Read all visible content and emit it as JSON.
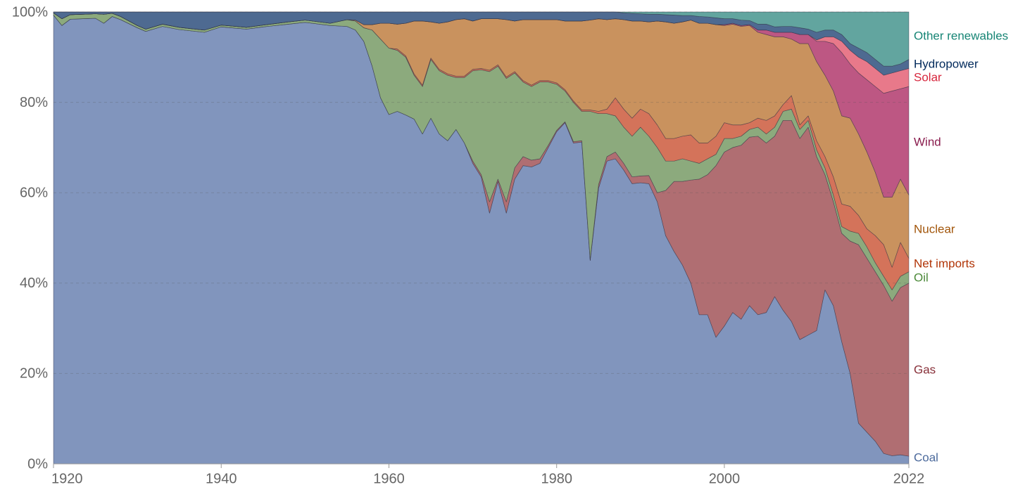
{
  "chart_data": {
    "type": "stacked_area",
    "x": [
      1920,
      1921,
      1922,
      1925,
      1926,
      1927,
      1928,
      1930,
      1931,
      1933,
      1935,
      1938,
      1940,
      1943,
      1945,
      1948,
      1950,
      1953,
      1955,
      1956,
      1957,
      1958,
      1959,
      1960,
      1961,
      1962,
      1963,
      1964,
      1965,
      1966,
      1967,
      1968,
      1969,
      1970,
      1971,
      1972,
      1973,
      1974,
      1975,
      1976,
      1977,
      1978,
      1979,
      1980,
      1981,
      1982,
      1983,
      1984,
      1985,
      1986,
      1987,
      1988,
      1989,
      1990,
      1991,
      1992,
      1993,
      1994,
      1995,
      1996,
      1997,
      1998,
      1999,
      2000,
      2001,
      2002,
      2003,
      2004,
      2005,
      2006,
      2007,
      2008,
      2009,
      2010,
      2011,
      2012,
      2013,
      2014,
      2015,
      2016,
      2017,
      2018,
      2019,
      2020,
      2021,
      2022
    ],
    "xlim": [
      1920,
      2022
    ],
    "xticks": [
      1920,
      1940,
      1960,
      1980,
      2000,
      2022
    ],
    "ylim": [
      0,
      100
    ],
    "yticks": [
      {
        "value": 0,
        "label": "0%"
      },
      {
        "value": 20,
        "label": "20%"
      },
      {
        "value": 40,
        "label": "40%"
      },
      {
        "value": 60,
        "label": "60%"
      },
      {
        "value": 80,
        "label": "80%"
      },
      {
        "value": 100,
        "label": "100%"
      }
    ],
    "grid": true,
    "series": [
      {
        "name": "Coal",
        "color": "#8195bd",
        "label_color": "#4c6a9c",
        "values": [
          99.3,
          97,
          98.4,
          98.6,
          97.5,
          99,
          98.3,
          96.5,
          95.7,
          96.8,
          96.1,
          95.5,
          96.7,
          96.2,
          96.7,
          97.3,
          97.7,
          97,
          96.8,
          96,
          93.5,
          88,
          81,
          77.3,
          78,
          77.2,
          76.3,
          73,
          76.5,
          73,
          71.5,
          74,
          71,
          66.5,
          63.5,
          55.5,
          62.5,
          55.5,
          63,
          66,
          65.7,
          66.5,
          70,
          73.5,
          75.5,
          71,
          71.2,
          45,
          61,
          67,
          67.5,
          65,
          62,
          62.2,
          62,
          58,
          50.5,
          47,
          44,
          40,
          33,
          33,
          28,
          30.5,
          33.5,
          32,
          35,
          33,
          33.5,
          37,
          34,
          31.5,
          27.5,
          28.5,
          29.5,
          38.5,
          35,
          27,
          20,
          9,
          7,
          5,
          2.3,
          1.8,
          2,
          1.7
        ]
      },
      {
        "name": "Gas",
        "color": "#b06e72",
        "label_color": "#883039",
        "values": [
          0,
          0,
          0,
          0,
          0,
          0,
          0,
          0,
          0,
          0,
          0,
          0,
          0,
          0,
          0,
          0,
          0,
          0,
          0,
          0,
          0,
          0,
          0,
          0,
          0,
          0,
          0,
          0,
          0,
          0,
          0,
          0,
          0,
          0.5,
          0.5,
          2.5,
          0.5,
          2.5,
          2.5,
          2,
          1.5,
          1,
          0.5,
          0.3,
          0.2,
          0.3,
          0.3,
          0.2,
          0.8,
          1,
          1.5,
          1.5,
          1.5,
          1.5,
          1.8,
          2,
          10,
          15.5,
          18.5,
          22.8,
          30,
          31,
          38,
          38.5,
          36.5,
          38.5,
          37.3,
          39.5,
          37.5,
          35.5,
          42,
          44.5,
          44.5,
          46,
          38.5,
          25.5,
          23,
          24,
          29.3,
          39.5,
          38.5,
          37.5,
          37.2,
          34.2,
          37,
          38.3
        ]
      },
      {
        "name": "Oil",
        "color": "#8caa7d",
        "label_color": "#4c8a3a",
        "values": [
          0.5,
          1.5,
          1,
          1,
          2,
          0.7,
          0.7,
          0.5,
          0.5,
          0.5,
          0.5,
          0.5,
          0.4,
          0.4,
          0.4,
          0.5,
          0.5,
          0.5,
          1.5,
          2,
          3,
          8,
          13,
          14.7,
          13.5,
          12.8,
          9.7,
          10.5,
          13,
          14,
          14.5,
          11.5,
          14.5,
          20,
          23.2,
          28.8,
          25,
          27.3,
          21,
          16.5,
          16.3,
          17,
          14,
          10.2,
          6.8,
          8.7,
          6.5,
          32.8,
          15.7,
          9.5,
          8,
          8,
          9,
          10.8,
          8.7,
          10,
          6.5,
          4.5,
          5,
          4.2,
          3.5,
          3.5,
          2.5,
          3,
          2,
          2,
          1.7,
          2,
          2,
          2,
          2,
          2.5,
          2,
          1.5,
          1.5,
          1.5,
          1.5,
          1.5,
          2.2,
          2.5,
          2.5,
          2,
          2,
          2.5,
          2.5,
          2.5
        ]
      },
      {
        "name": "Net imports",
        "color": "#d4735a",
        "label_color": "#b13507",
        "values": [
          0,
          0,
          0,
          0,
          0,
          0,
          0,
          0,
          0,
          0,
          0,
          0,
          0,
          0,
          0,
          0,
          0,
          0,
          0,
          0,
          0,
          0,
          0,
          0,
          0.3,
          0.3,
          0.3,
          0.3,
          0.3,
          0.3,
          0.3,
          0.3,
          0.3,
          0.3,
          0.3,
          0.3,
          0.3,
          0.3,
          0.3,
          0.3,
          0.3,
          0.3,
          0.3,
          0.3,
          0.3,
          0.3,
          0.3,
          0.3,
          0.5,
          1,
          4,
          4,
          4,
          4,
          5,
          5,
          5,
          5,
          5,
          5.8,
          4.5,
          3.5,
          4,
          3.5,
          3,
          2.5,
          1.5,
          2,
          3,
          2.5,
          1.5,
          3,
          1,
          1,
          2,
          2.5,
          4,
          5,
          5.5,
          4,
          4,
          6,
          7,
          5,
          7.5,
          3
        ]
      },
      {
        "name": "Nuclear",
        "color": "#c9925e",
        "label_color": "#a2560b",
        "values": [
          0,
          0,
          0,
          0,
          0,
          0,
          0,
          0,
          0,
          0,
          0,
          0,
          0,
          0,
          0,
          0,
          0,
          0,
          0,
          0.2,
          0.7,
          1.2,
          3.5,
          5.5,
          5.5,
          7.2,
          11.7,
          14.2,
          8,
          10.2,
          11.5,
          12.5,
          12.7,
          10.7,
          11,
          11.4,
          10.2,
          12.7,
          11.2,
          13.5,
          14.5,
          13.5,
          13.5,
          14,
          15.2,
          17.7,
          19.7,
          19.9,
          20.5,
          19.8,
          17.5,
          19.8,
          21.5,
          19.5,
          20.3,
          23,
          25.8,
          25.5,
          25.3,
          25.4,
          26.5,
          26.5,
          24.7,
          21.5,
          22.3,
          21.8,
          21.5,
          19,
          19,
          17.5,
          15,
          12.5,
          18,
          16,
          17.5,
          18,
          19,
          19.5,
          19.5,
          18,
          17,
          14,
          10.5,
          15.5,
          14,
          14
        ]
      },
      {
        "name": "Wind",
        "color": "#bd5783",
        "label_color": "#8a1d4e",
        "values": [
          0,
          0,
          0,
          0,
          0,
          0,
          0,
          0,
          0,
          0,
          0,
          0,
          0,
          0,
          0,
          0,
          0,
          0,
          0,
          0,
          0,
          0,
          0,
          0,
          0,
          0,
          0,
          0,
          0,
          0,
          0,
          0,
          0,
          0,
          0,
          0,
          0,
          0,
          0,
          0,
          0,
          0,
          0,
          0,
          0,
          0,
          0,
          0,
          0,
          0,
          0,
          0,
          0,
          0,
          0,
          0,
          0,
          0,
          0,
          0,
          0,
          0,
          0,
          0.2,
          0.2,
          0.2,
          0.2,
          0.5,
          1,
          1,
          1,
          1.5,
          2,
          2,
          4.5,
          7.5,
          10.5,
          14,
          12,
          13.5,
          16,
          19,
          23,
          23.5,
          20,
          24
        ]
      },
      {
        "name": "Solar",
        "color": "#e8798a",
        "label_color": "#d7263d",
        "values": [
          0,
          0,
          0,
          0,
          0,
          0,
          0,
          0,
          0,
          0,
          0,
          0,
          0,
          0,
          0,
          0,
          0,
          0,
          0,
          0,
          0,
          0,
          0,
          0,
          0,
          0,
          0,
          0,
          0,
          0,
          0,
          0,
          0,
          0,
          0,
          0,
          0,
          0,
          0,
          0,
          0,
          0,
          0,
          0,
          0,
          0,
          0,
          0,
          0,
          0,
          0,
          0,
          0,
          0,
          0,
          0,
          0,
          0,
          0,
          0,
          0,
          0,
          0,
          0,
          0,
          0,
          0,
          0,
          0,
          0,
          0,
          0,
          0,
          0,
          0.3,
          1,
          1.5,
          2.5,
          3,
          3.5,
          4,
          4,
          4,
          4,
          4,
          4
        ]
      },
      {
        "name": "Hydropower",
        "color": "#4e6a91",
        "label_color": "#00295b",
        "values": [
          0.2,
          1.5,
          0.6,
          0.4,
          0.5,
          0.3,
          1,
          3,
          3.8,
          2.7,
          3.4,
          4,
          2.9,
          3.4,
          2.9,
          2.2,
          1.8,
          2.5,
          1.7,
          1.8,
          2.8,
          2.8,
          2.5,
          2.5,
          2.7,
          2.5,
          2,
          2,
          2.2,
          2.5,
          2.2,
          1.7,
          1.5,
          2,
          1.5,
          1.5,
          1.5,
          1.7,
          2,
          1.7,
          1.7,
          1.7,
          1.7,
          1.7,
          2,
          2,
          2,
          1.8,
          1.5,
          1.7,
          1.5,
          1.5,
          1.7,
          1.6,
          1.7,
          1.5,
          1.6,
          1.8,
          1.4,
          1,
          1.5,
          1.4,
          1.5,
          1.3,
          1,
          1.2,
          0.9,
          1.3,
          1.3,
          1.2,
          1.3,
          1.3,
          1.5,
          1.2,
          1.7,
          1.5,
          1.5,
          1.5,
          1.5,
          2,
          2,
          2,
          2,
          1.5,
          1.5,
          2
        ]
      },
      {
        "name": "Other renewables",
        "color": "#62a59f",
        "label_color": "#178575",
        "values": [
          0,
          0,
          0,
          0,
          0,
          0,
          0,
          0,
          0,
          0,
          0,
          0,
          0,
          0,
          0,
          0,
          0,
          0,
          0,
          0,
          0,
          0,
          0,
          0,
          0,
          0,
          0,
          0,
          0,
          0,
          0,
          0,
          0,
          0,
          0,
          0,
          0,
          0,
          0,
          0,
          0,
          0,
          0,
          0,
          0,
          0,
          0,
          0,
          0,
          0,
          0,
          0.2,
          0.3,
          0.4,
          0.5,
          0.5,
          0.6,
          0.7,
          0.8,
          0.8,
          1,
          1.1,
          1.3,
          1.5,
          1.5,
          1.8,
          1.9,
          2.7,
          2.7,
          3.3,
          3.2,
          3.2,
          3.5,
          3.8,
          4.5,
          4,
          4,
          5,
          7,
          8,
          9,
          10.5,
          12,
          12,
          11.5,
          10.5
        ]
      }
    ]
  }
}
